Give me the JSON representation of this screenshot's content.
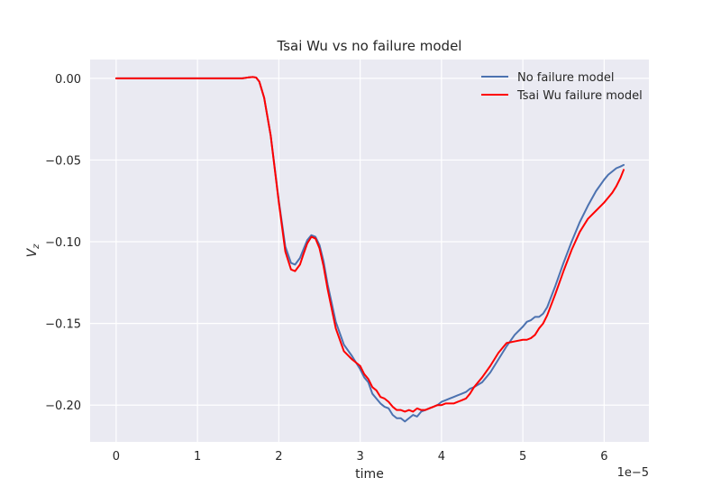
{
  "chart_data": {
    "type": "line",
    "title": "Tsai Wu vs no failure model",
    "xlabel": "time",
    "ylabel_base": "V",
    "ylabel_sub": "z",
    "x_offset_label": "1e−5",
    "x_scale": 1e-05,
    "xlim": [
      -0.32,
      6.55
    ],
    "ylim": [
      -0.2225,
      0.0115
    ],
    "xticks": [
      0,
      1,
      2,
      3,
      4,
      5,
      6
    ],
    "xtick_labels": [
      "0",
      "1",
      "2",
      "3",
      "4",
      "5",
      "6"
    ],
    "yticks": [
      0.0,
      -0.05,
      -0.1,
      -0.15,
      -0.2
    ],
    "ytick_labels": [
      "0.00",
      "−0.05",
      "−0.10",
      "−0.15",
      "−0.20"
    ],
    "grid": true,
    "legend_position": "top-right",
    "series": [
      {
        "name": "No failure model",
        "color": "#4c72b0",
        "x": [
          0,
          0.5,
          1.0,
          1.4,
          1.55,
          1.62,
          1.68,
          1.72,
          1.76,
          1.82,
          1.9,
          2.0,
          2.08,
          2.15,
          2.2,
          2.26,
          2.3,
          2.35,
          2.4,
          2.45,
          2.5,
          2.55,
          2.6,
          2.7,
          2.8,
          2.9,
          3.0,
          3.05,
          3.1,
          3.15,
          3.2,
          3.25,
          3.3,
          3.35,
          3.4,
          3.45,
          3.5,
          3.55,
          3.6,
          3.65,
          3.7,
          3.75,
          3.8,
          3.85,
          3.9,
          3.95,
          4.0,
          4.05,
          4.1,
          4.15,
          4.2,
          4.25,
          4.3,
          4.35,
          4.4,
          4.5,
          4.6,
          4.7,
          4.8,
          4.9,
          5.0,
          5.05,
          5.1,
          5.15,
          5.2,
          5.25,
          5.3,
          5.4,
          5.5,
          5.6,
          5.7,
          5.8,
          5.9,
          6.0,
          6.05,
          6.1,
          6.15,
          6.2,
          6.24
        ],
        "y": [
          0,
          0,
          0,
          0,
          0.0,
          0.0005,
          0.0008,
          0.0005,
          -0.002,
          -0.012,
          -0.035,
          -0.075,
          -0.103,
          -0.113,
          -0.114,
          -0.11,
          -0.105,
          -0.099,
          -0.096,
          -0.097,
          -0.102,
          -0.112,
          -0.126,
          -0.149,
          -0.163,
          -0.17,
          -0.178,
          -0.183,
          -0.186,
          -0.193,
          -0.196,
          -0.199,
          -0.201,
          -0.202,
          -0.206,
          -0.208,
          -0.208,
          -0.21,
          -0.208,
          -0.206,
          -0.207,
          -0.204,
          -0.203,
          -0.202,
          -0.201,
          -0.2,
          -0.198,
          -0.197,
          -0.196,
          -0.195,
          -0.194,
          -0.193,
          -0.192,
          -0.19,
          -0.189,
          -0.186,
          -0.18,
          -0.172,
          -0.164,
          -0.157,
          -0.152,
          -0.149,
          -0.148,
          -0.146,
          -0.146,
          -0.144,
          -0.14,
          -0.127,
          -0.113,
          -0.1,
          -0.088,
          -0.078,
          -0.069,
          -0.062,
          -0.059,
          -0.057,
          -0.055,
          -0.054,
          -0.053
        ]
      },
      {
        "name": "Tsai Wu failure model",
        "color": "#ff0000",
        "x": [
          0,
          0.5,
          1.0,
          1.4,
          1.55,
          1.62,
          1.68,
          1.72,
          1.76,
          1.82,
          1.9,
          2.0,
          2.08,
          2.15,
          2.2,
          2.26,
          2.3,
          2.35,
          2.4,
          2.45,
          2.5,
          2.55,
          2.6,
          2.7,
          2.8,
          2.9,
          3.0,
          3.05,
          3.1,
          3.15,
          3.2,
          3.25,
          3.3,
          3.35,
          3.4,
          3.45,
          3.5,
          3.55,
          3.6,
          3.65,
          3.7,
          3.75,
          3.8,
          3.85,
          3.9,
          3.95,
          4.0,
          4.05,
          4.1,
          4.15,
          4.2,
          4.25,
          4.3,
          4.35,
          4.4,
          4.5,
          4.6,
          4.7,
          4.8,
          4.9,
          5.0,
          5.05,
          5.1,
          5.15,
          5.2,
          5.25,
          5.3,
          5.4,
          5.5,
          5.6,
          5.7,
          5.8,
          5.9,
          6.0,
          6.05,
          6.1,
          6.15,
          6.2,
          6.24
        ],
        "y": [
          0,
          0,
          0,
          0,
          0.0,
          0.0005,
          0.0008,
          0.0005,
          -0.002,
          -0.012,
          -0.035,
          -0.076,
          -0.106,
          -0.117,
          -0.118,
          -0.114,
          -0.108,
          -0.101,
          -0.097,
          -0.098,
          -0.104,
          -0.115,
          -0.129,
          -0.153,
          -0.167,
          -0.172,
          -0.176,
          -0.181,
          -0.184,
          -0.189,
          -0.191,
          -0.195,
          -0.196,
          -0.198,
          -0.201,
          -0.203,
          -0.203,
          -0.204,
          -0.203,
          -0.204,
          -0.202,
          -0.203,
          -0.203,
          -0.202,
          -0.201,
          -0.2,
          -0.2,
          -0.199,
          -0.199,
          -0.199,
          -0.198,
          -0.197,
          -0.196,
          -0.193,
          -0.189,
          -0.183,
          -0.176,
          -0.168,
          -0.162,
          -0.161,
          -0.16,
          -0.16,
          -0.159,
          -0.157,
          -0.153,
          -0.15,
          -0.145,
          -0.132,
          -0.118,
          -0.105,
          -0.094,
          -0.086,
          -0.081,
          -0.076,
          -0.073,
          -0.07,
          -0.066,
          -0.061,
          -0.056
        ]
      }
    ]
  }
}
